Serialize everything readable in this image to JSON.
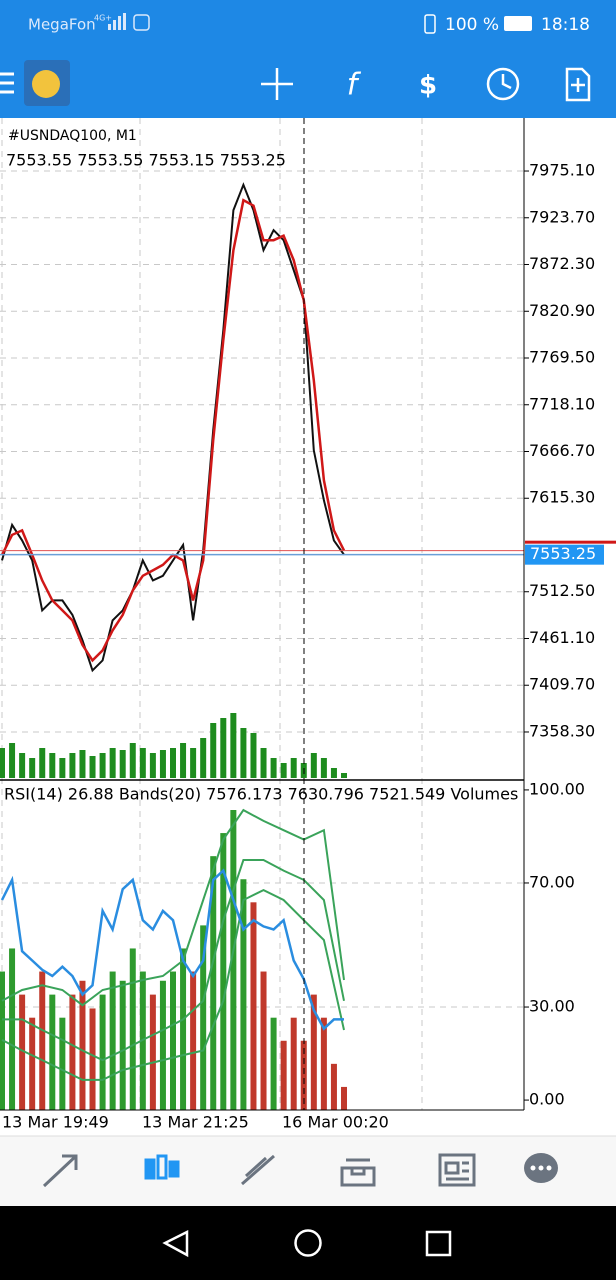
{
  "status_bar": {
    "carrier": "MegaFon",
    "network": "4G+",
    "battery": "100 %",
    "time": "18:18"
  },
  "chart": {
    "symbol": "#USNDAQ100, M1",
    "ohlc": "7553.55 7553.55 7553.15 7553.25",
    "price_ylim": [
      7305.5,
      8033.4
    ],
    "price_ticks": [
      {
        "value": 7975.1,
        "label": "7975.10"
      },
      {
        "value": 7923.7,
        "label": "7923.70"
      },
      {
        "value": 7872.3,
        "label": "7872.30"
      },
      {
        "value": 7820.9,
        "label": "7820.90"
      },
      {
        "value": 7769.5,
        "label": "7769.50"
      },
      {
        "value": 7718.1,
        "label": "7718.10"
      },
      {
        "value": 7666.7,
        "label": "7666.70"
      },
      {
        "value": 7615.3,
        "label": "7615.30"
      },
      {
        "value": 7512.5,
        "label": "7512.50"
      },
      {
        "value": 7461.1,
        "label": "7461.10"
      },
      {
        "value": 7409.7,
        "label": "7409.70"
      },
      {
        "value": 7358.3,
        "label": "7358.30"
      }
    ],
    "current_price": 7553.25,
    "close": [
      7547,
      7586,
      7569,
      7547,
      7492,
      7503,
      7503,
      7487,
      7459,
      7426,
      7437,
      7481,
      7492,
      7514,
      7547,
      7525,
      7530,
      7547,
      7564,
      7481,
      7558,
      7690,
      7800,
      7932,
      7960,
      7932,
      7888,
      7910,
      7899,
      7866,
      7833,
      7668,
      7613,
      7569,
      7553.25
    ],
    "ma": [
      7553,
      7575,
      7580,
      7553,
      7525,
      7503,
      7492,
      7481,
      7454,
      7437,
      7448,
      7470,
      7487,
      7514,
      7530,
      7536,
      7542,
      7553,
      7547,
      7503,
      7547,
      7679,
      7789,
      7888,
      7943,
      7937,
      7899,
      7899,
      7904,
      7877,
      7833,
      7745,
      7635,
      7580,
      7558
    ],
    "volumes": [
      30,
      35,
      25,
      20,
      30,
      25,
      20,
      25,
      28,
      22,
      25,
      30,
      28,
      35,
      30,
      25,
      28,
      30,
      35,
      30,
      40,
      55,
      60,
      65,
      50,
      45,
      30,
      20,
      15,
      20,
      15,
      25,
      20,
      10,
      5
    ],
    "indicator_label": "RSI(14) 26.88 Bands(20) 7576.173 7630.796 7521.549 Volumes",
    "rsi_ylim": [
      -3.2,
      103.2
    ],
    "rsi_ticks": [
      {
        "value": 100,
        "label": "100.00"
      },
      {
        "value": 70,
        "label": "70.00"
      },
      {
        "value": 30,
        "label": "30.00"
      },
      {
        "value": 0,
        "label": "0.00"
      }
    ],
    "rsi": [
      64.5,
      71,
      48,
      45,
      42,
      40,
      43,
      40,
      34,
      37,
      61,
      55,
      68,
      71,
      58,
      55,
      61,
      58,
      45,
      40,
      45,
      71,
      74,
      64.5,
      55,
      58,
      56,
      55,
      58,
      45,
      39,
      29,
      23,
      26,
      26
    ],
    "bands_upper": [
      32,
      35.5,
      37,
      35.5,
      30.6,
      35.5,
      37,
      38.7,
      40,
      45,
      64.5,
      84,
      93.5,
      90,
      87,
      84,
      87,
      38.7
    ],
    "bands_middle": [
      26,
      26,
      22.6,
      19.4,
      16,
      12.9,
      16,
      19.4,
      22.6,
      26,
      32,
      58,
      77.4,
      77.4,
      74,
      71,
      64.5,
      32
    ],
    "bands_lower": [
      19.4,
      16,
      12.9,
      9.7,
      6.5,
      6.5,
      9.7,
      11.3,
      12.9,
      14.5,
      16,
      32,
      64.5,
      67.7,
      64.5,
      58,
      51.6,
      22.6
    ],
    "time_labels": [
      "13 Mar 19:49",
      "13 Mar 21:25",
      "16 Mar 00:20"
    ]
  }
}
